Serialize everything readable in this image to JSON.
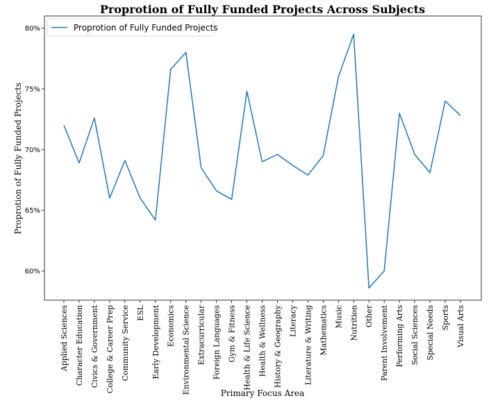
{
  "chart_data": {
    "type": "line",
    "title": "Proprotion of Fully Funded Projects Across Subjects",
    "xlabel": "Primary Focus Area",
    "ylabel": "Proprotion of Fully Funded Projects",
    "ylim": [
      0.576,
      0.81
    ],
    "yticks": [
      0.6,
      0.65,
      0.7,
      0.75,
      0.8
    ],
    "ytick_labels": [
      "60%",
      "65%",
      "70%",
      "75%",
      "80%"
    ],
    "grid": false,
    "legend_position": "top-left",
    "series": [
      {
        "name": "Proprotion of Fully Funded Projects",
        "color": "#1f77b4",
        "values": [
          0.72,
          0.689,
          0.726,
          0.66,
          0.691,
          0.66,
          0.642,
          0.766,
          0.78,
          0.685,
          0.666,
          0.659,
          0.748,
          0.69,
          0.696,
          0.687,
          0.679,
          0.695,
          0.76,
          0.795,
          0.586,
          0.6,
          0.73,
          0.696,
          0.681,
          0.74,
          0.728
        ]
      }
    ],
    "categories": [
      "Applied Sciences",
      "Character Education",
      "Civics & Government",
      "College & Career Prep",
      "Community Service",
      "ESL",
      "Early Development",
      "Economics",
      "Environmental Science",
      "Extracurricular",
      "Foreign Languages",
      "Gym & Fitness",
      "Health & Life Science",
      "Health & Wellness",
      "History & Geography",
      "Literacy",
      "Literature & Writing",
      "Mathematics",
      "Music",
      "Nutrition",
      "Other",
      "Parent Involvement",
      "Performing Arts",
      "Social Sciences",
      "Special Needs",
      "Sports",
      "Visual Arts"
    ]
  }
}
